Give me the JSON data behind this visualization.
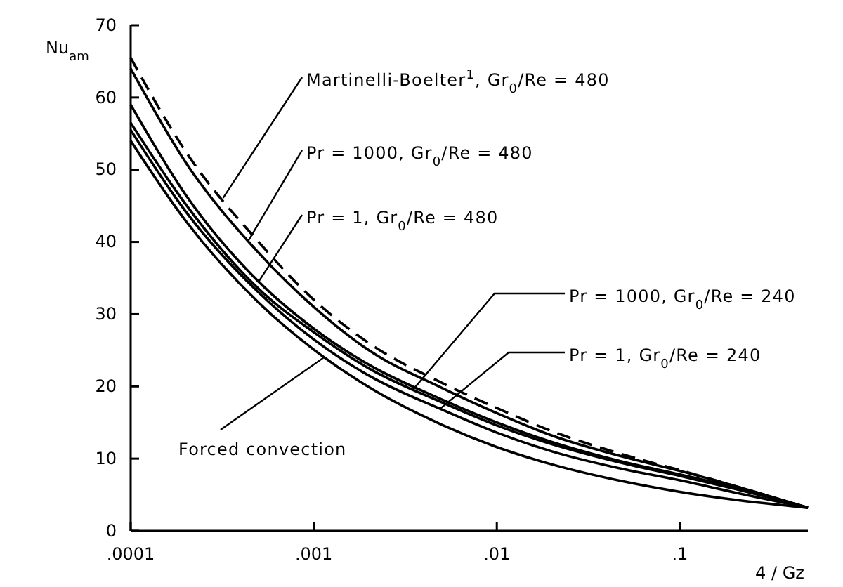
{
  "chart_data": {
    "type": "line",
    "xlabel": "4 / Gz",
    "ylabel": "Nu$_{am}$",
    "log": "x",
    "x": [
      0.0001,
      0.0002,
      0.0005,
      0.001,
      0.002,
      0.005,
      0.01,
      0.02,
      0.05,
      0.1,
      0.2,
      0.5
    ],
    "xlim": [
      0.0001,
      0.5
    ],
    "ylim": [
      0,
      70
    ],
    "xticks": [
      {
        "value": 0.0001,
        "label": ".0001"
      },
      {
        "value": 0.001,
        "label": ".001"
      },
      {
        "value": 0.01,
        "label": ".01"
      },
      {
        "value": 0.1,
        "label": ".1"
      }
    ],
    "yticks": [
      0,
      10,
      20,
      30,
      40,
      50,
      60,
      70
    ],
    "grid": false,
    "marker": "none",
    "annotations": [
      {
        "text": "Martinelli-Boelter$^{1}$,  Gr$_{0}$/Re = 480",
        "x": 0.00032,
        "y": 46.1
      },
      {
        "text": "Pr = 1000,  Gr$_{0}$/Re = 480",
        "x": 0.00044,
        "y": 40.2
      },
      {
        "text": "Pr = 1,  Gr$_{0}$/Re = 480",
        "x": 0.0005,
        "y": 34.5
      },
      {
        "text": "Pr = 1000,  Gr$_{0}$/Re = 240",
        "x": 0.0035,
        "y": 19.6
      },
      {
        "text": "Pr = 1,  Gr$_{0}$/Re = 240",
        "x": 0.0049,
        "y": 16.9
      },
      {
        "text": "Forced convection",
        "x": 0.00115,
        "y": 24.1
      }
    ],
    "series": [
      {
        "color": "#000000",
        "line_style": "dashed",
        "values": [
          65.5,
          52.5,
          40,
          32,
          26,
          20.5,
          17,
          13.8,
          10.5,
          8.4,
          6.2,
          3.2
        ]
      },
      {
        "color": "#000000",
        "line_style": "solid",
        "values": [
          64,
          51,
          38.5,
          31,
          25,
          19.8,
          16.3,
          13.2,
          10.2,
          8.3,
          6.2,
          3.2
        ]
      },
      {
        "color": "#000000",
        "line_style": "solid",
        "values": [
          59,
          46.5,
          34.5,
          28,
          23,
          18.2,
          15,
          12.3,
          9.5,
          7.8,
          6,
          3.2
        ]
      },
      {
        "color": "#000000",
        "line_style": "solid",
        "values": [
          56.5,
          45.2,
          33.5,
          27.5,
          22.5,
          17.8,
          14.6,
          12,
          9.3,
          7.6,
          5.8,
          3.2
        ]
      },
      {
        "color": "#000000",
        "line_style": "solid",
        "values": [
          55.5,
          44.2,
          33,
          26.5,
          21.5,
          16.8,
          13.6,
          11,
          8.5,
          7,
          5.3,
          3.2
        ]
      },
      {
        "color": "#000000",
        "line_style": "solid",
        "values": [
          54,
          42.9,
          31.6,
          25.1,
          19.9,
          14.7,
          11.6,
          9.2,
          6.8,
          5.4,
          4.3,
          3.2
        ]
      }
    ]
  }
}
